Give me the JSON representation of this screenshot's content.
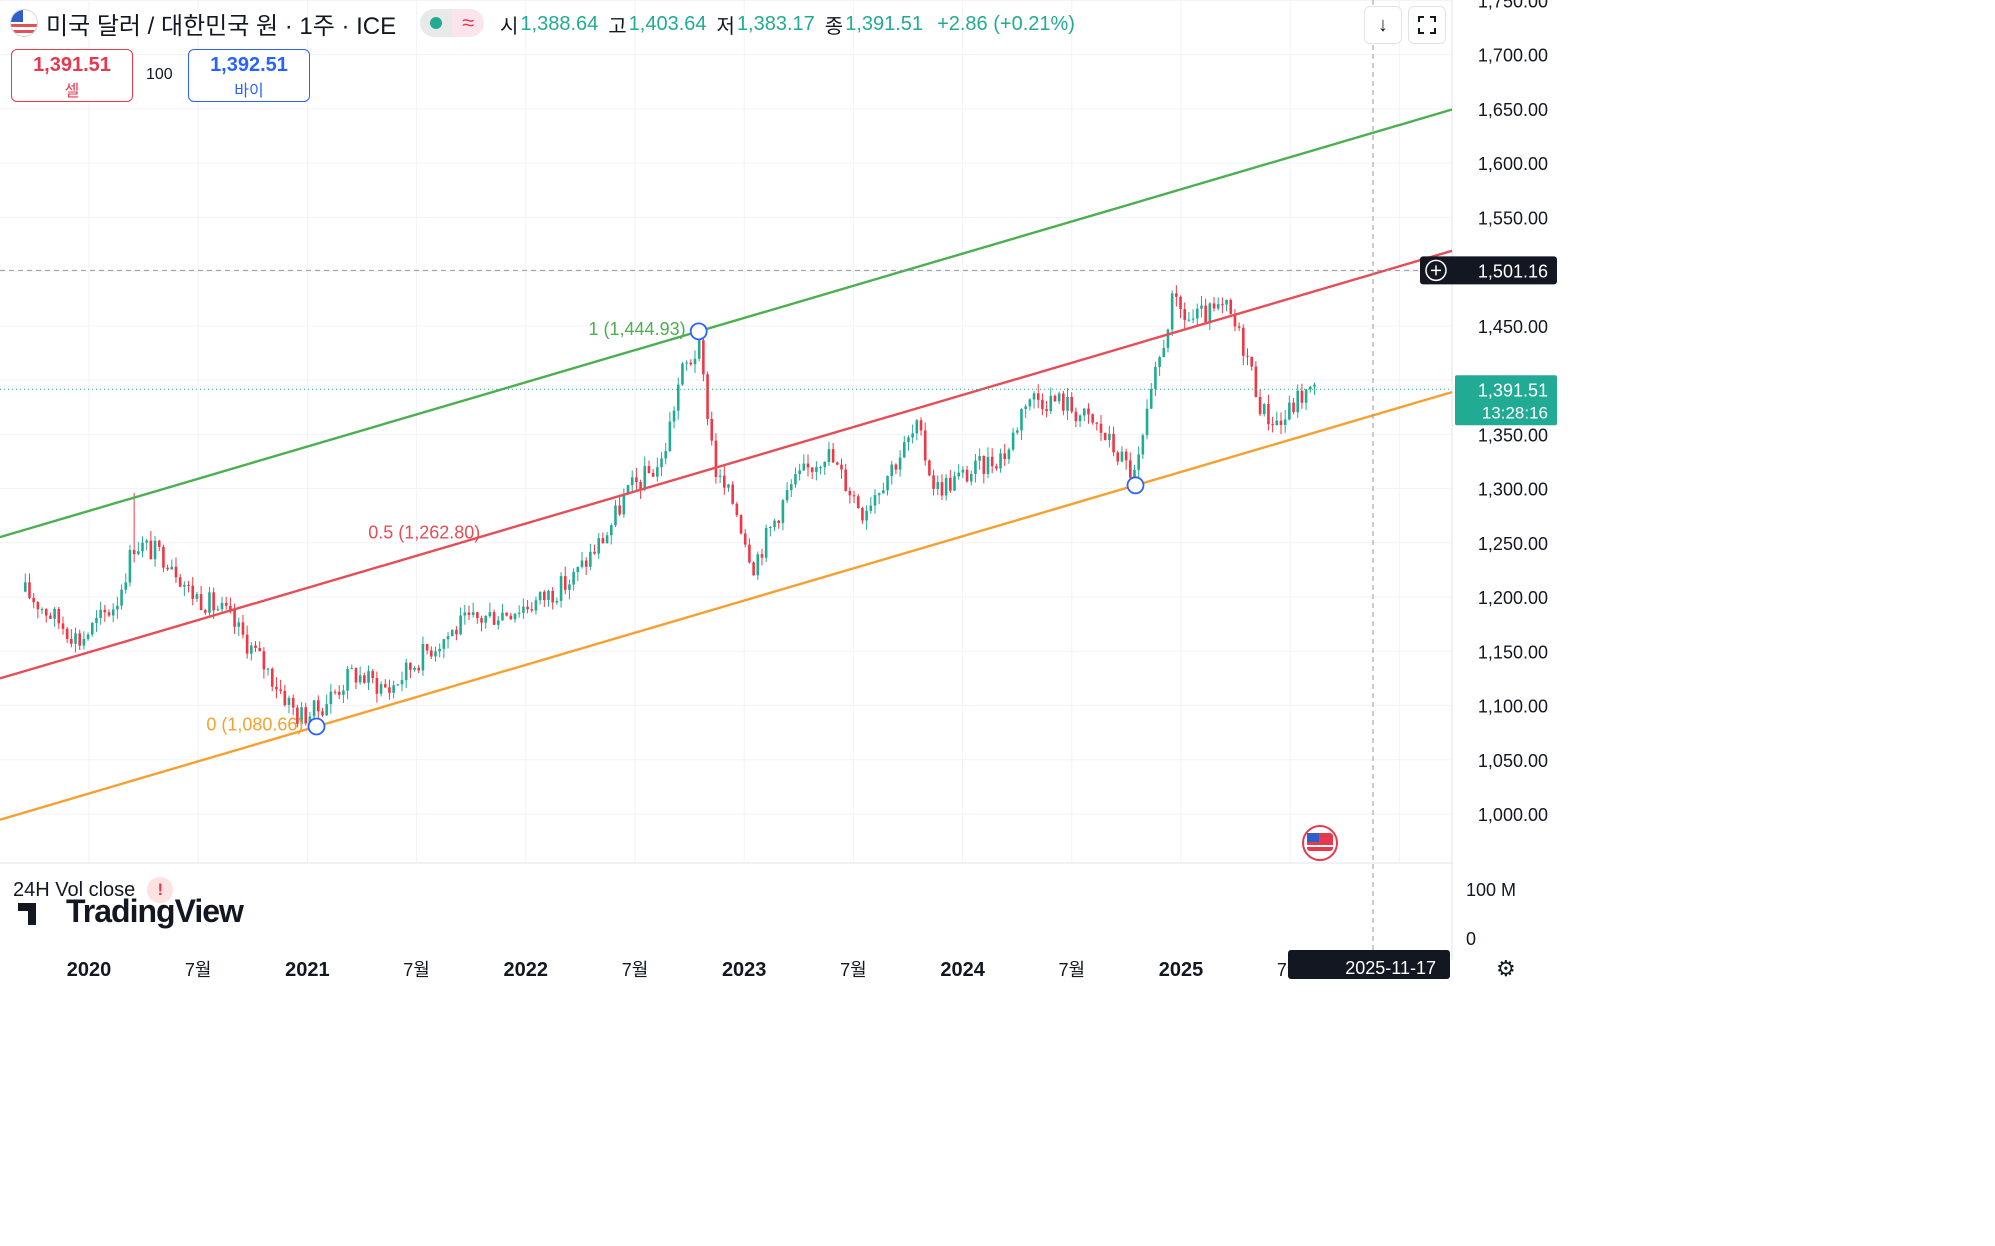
{
  "header": {
    "title": "미국 달러 / 대한민국 원 · 1주 · ICE",
    "ohlc": [
      {
        "label": "시",
        "value": "1,388.64"
      },
      {
        "label": "고",
        "value": "1,403.64"
      },
      {
        "label": "저",
        "value": "1,383.17"
      },
      {
        "label": "종",
        "value": "1,391.51"
      }
    ],
    "change": "+2.86 (+0.21%)"
  },
  "trade": {
    "sell_price": "1,391.51",
    "sell_label": "셀",
    "quantity": "100",
    "buy_price": "1,392.51",
    "buy_label": "바이"
  },
  "toolbar": {
    "download_icon": "arrow-down-icon",
    "fullscreen_icon": "fullscreen-icon"
  },
  "indicator": {
    "label": "24H Vol close",
    "warning": "!"
  },
  "logo": "TradingView",
  "settings_icon": "gear-icon",
  "colors": {
    "up": "#22ab94",
    "down": "#f23645",
    "channel_top": "#4caf50",
    "channel_mid": "#e54e56",
    "channel_bottom": "#f5a030",
    "last_price_bg": "#22ab94",
    "crosshair_label_bg": "#131722"
  },
  "chart_data": {
    "type": "candlestick",
    "symbol": "USD/KRW",
    "timeframe": "1W",
    "ylim": [
      970,
      1760
    ],
    "y_ticks": [
      "1,750.00",
      "1,700.00",
      "1,650.00",
      "1,600.00",
      "1,550.00",
      "1,500.00",
      "1,450.00",
      "1,400.00",
      "1,350.00",
      "1,300.00",
      "1,250.00",
      "1,200.00",
      "1,150.00",
      "1,100.00",
      "1,050.00",
      "1,000.00"
    ],
    "x_ticks": [
      "2020",
      "7월",
      "2021",
      "7월",
      "2022",
      "7월",
      "2023",
      "7월",
      "2024",
      "7월",
      "2025",
      "7월"
    ],
    "crosshair": {
      "price_label": "1,501.16",
      "price": 1501.16,
      "date_label": "2025-11-17"
    },
    "last_price": {
      "value": "1,391.51",
      "price": 1391.51,
      "countdown": "13:28:16"
    },
    "volume_axis": [
      "100 M",
      "0"
    ],
    "channel": {
      "levels": [
        {
          "label": "1 (1,444.93)",
          "price": 1444.93,
          "anchor_date": "2022-10"
        },
        {
          "label": "0.5 (1,262.80)",
          "price": 1262.8
        },
        {
          "label": "0 (1,080.66)",
          "price": 1080.66,
          "anchor_date": "2021-01"
        }
      ],
      "anchor_3": {
        "date": "2024-10",
        "price": 1303
      }
    },
    "price_path": [
      {
        "date": "2019-09",
        "close": 1205
      },
      {
        "date": "2019-11",
        "close": 1175
      },
      {
        "date": "2019-12",
        "close": 1160
      },
      {
        "date": "2020-02",
        "close": 1195
      },
      {
        "date": "2020-03",
        "close": 1250,
        "high": 1296
      },
      {
        "date": "2020-05",
        "close": 1235
      },
      {
        "date": "2020-06",
        "close": 1205
      },
      {
        "date": "2020-08",
        "close": 1185
      },
      {
        "date": "2020-10",
        "close": 1140
      },
      {
        "date": "2020-12",
        "close": 1090
      },
      {
        "date": "2021-01",
        "close": 1095,
        "low": 1080.66
      },
      {
        "date": "2021-03",
        "close": 1130
      },
      {
        "date": "2021-05",
        "close": 1115
      },
      {
        "date": "2021-07",
        "close": 1150
      },
      {
        "date": "2021-09",
        "close": 1175
      },
      {
        "date": "2021-11",
        "close": 1185
      },
      {
        "date": "2022-01",
        "close": 1195
      },
      {
        "date": "2022-03",
        "close": 1215
      },
      {
        "date": "2022-05",
        "close": 1260
      },
      {
        "date": "2022-06",
        "close": 1295
      },
      {
        "date": "2022-08",
        "close": 1325
      },
      {
        "date": "2022-09",
        "close": 1405
      },
      {
        "date": "2022-10",
        "close": 1430,
        "high": 1444.93
      },
      {
        "date": "2022-11",
        "close": 1310
      },
      {
        "date": "2022-12",
        "close": 1285
      },
      {
        "date": "2023-01",
        "close": 1230
      },
      {
        "date": "2023-03",
        "close": 1300
      },
      {
        "date": "2023-05",
        "close": 1335
      },
      {
        "date": "2023-07",
        "close": 1280
      },
      {
        "date": "2023-09",
        "close": 1330
      },
      {
        "date": "2023-10",
        "close": 1355
      },
      {
        "date": "2023-11",
        "close": 1300
      },
      {
        "date": "2024-01",
        "close": 1315
      },
      {
        "date": "2024-03",
        "close": 1335
      },
      {
        "date": "2024-04",
        "close": 1385
      },
      {
        "date": "2024-06",
        "close": 1380
      },
      {
        "date": "2024-08",
        "close": 1355
      },
      {
        "date": "2024-10",
        "close": 1310,
        "low": 1303
      },
      {
        "date": "2024-11",
        "close": 1395
      },
      {
        "date": "2024-12",
        "close": 1470
      },
      {
        "date": "2025-01",
        "close": 1455
      },
      {
        "date": "2025-03",
        "close": 1465
      },
      {
        "date": "2025-04",
        "close": 1430
      },
      {
        "date": "2025-05",
        "close": 1370
      },
      {
        "date": "2025-06",
        "close": 1360
      },
      {
        "date": "2025-07",
        "close": 1385
      },
      {
        "date": "2025-08",
        "close": 1391.51
      }
    ]
  }
}
